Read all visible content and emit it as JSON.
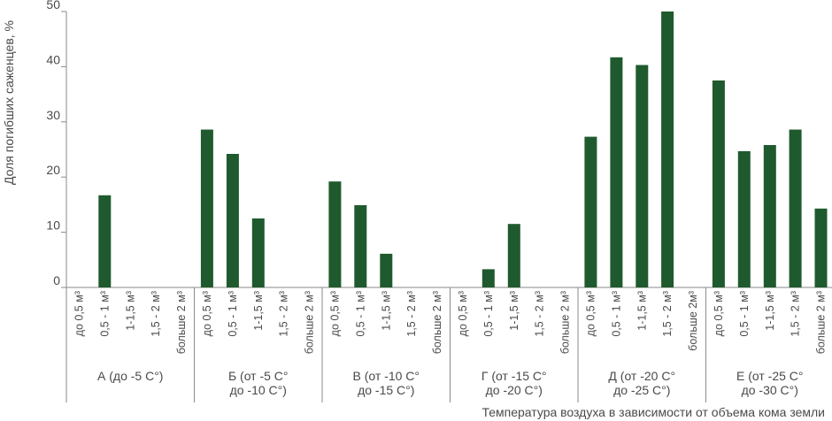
{
  "chart_data": {
    "type": "bar",
    "title": "",
    "ylabel": "Доля погибших саженцев, %",
    "xlabel": "Температура воздуха в зависимости от объема кома земли",
    "ylim": [
      0,
      50
    ],
    "yticks": [
      0,
      10,
      20,
      30,
      40,
      50
    ],
    "grid": false,
    "bar_color": "#1f5a2e",
    "axis_color": "#8a8a8a",
    "groups": [
      {
        "name": "А (до -5 С°)",
        "name_lines": [
          "А (до -5 С°)"
        ],
        "categories": [
          "до 0,5 м³",
          "0,5 - 1 м³",
          "1-1,5 м³",
          "1,5 - 2 м³",
          "больше 2 м³"
        ],
        "values": [
          0,
          16.7,
          0,
          0,
          0
        ]
      },
      {
        "name": "Б (от -5 С° до -10 С°)",
        "name_lines": [
          "Б (от -5 С°",
          "до -10 С°)"
        ],
        "categories": [
          "до 0,5 м³",
          "0,5 - 1 м³",
          "1-1,5 м³",
          "1,5 - 2 м³",
          "больше 2 м³"
        ],
        "values": [
          28.6,
          24.2,
          12.5,
          0,
          0
        ]
      },
      {
        "name": "В (от -10 С° до -15 С°)",
        "name_lines": [
          "В (от -10 С°",
          "до -15 С°)"
        ],
        "categories": [
          "до 0,5 м³",
          "0,5 - 1 м³",
          "1-1,5 м³",
          "1,5 - 2 м³",
          "больше 2 м³"
        ],
        "values": [
          19.2,
          14.9,
          6.1,
          0,
          0
        ]
      },
      {
        "name": "Г (от -15 С° до -20 С°)",
        "name_lines": [
          "Г (от -15 С°",
          "до -20 С°)"
        ],
        "categories": [
          "до 0,5 м³",
          "0,5 - 1 м³",
          "1-1,5 м³",
          "1,5 - 2 м³",
          "больше 2 м³"
        ],
        "values": [
          0,
          3.3,
          11.5,
          0,
          0
        ]
      },
      {
        "name": "Д (от -20 С° до -25 С°)",
        "name_lines": [
          "Д (от -20 С°",
          "до -25 С°)"
        ],
        "categories": [
          "до 0,5 м³",
          "0,5 - 1 м³",
          "1-1,5 м³",
          "1,5 - 2 м³",
          "больше 2м³"
        ],
        "values": [
          27.3,
          41.7,
          40.3,
          50,
          0
        ]
      },
      {
        "name": "Е (от -25 С° до -30 С°)",
        "name_lines": [
          "Е (от -25 С°",
          "до -30 С°)"
        ],
        "categories": [
          "до 0,5 м³",
          "0,5 - 1 м³",
          "1-1,5 м³",
          "1,5 - 2 м³",
          "больше 2 м³"
        ],
        "values": [
          37.5,
          24.7,
          25.8,
          28.6,
          14.3
        ]
      }
    ]
  }
}
